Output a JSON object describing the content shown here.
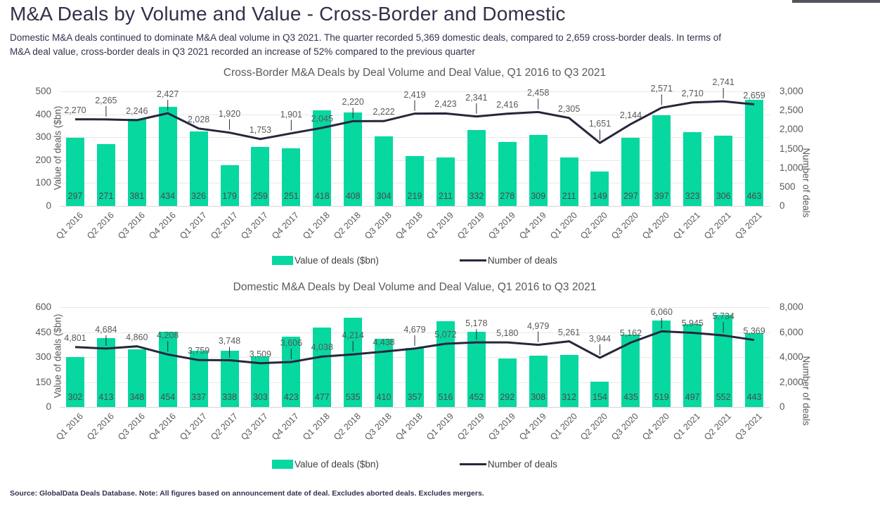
{
  "page": {
    "title": "M&A Deals by Volume and Value - Cross-Border and Domestic",
    "subtitle_lines": [
      "Domestic M&A deals continued to dominate M&A deal volume in Q3 2021. The quarter recorded 5,369 domestic deals, compared to 2,659 cross-border deals. In terms of",
      "M&A deal value, cross-border deals in Q3 2021 recorded an increase of 52% compared to the previous quarter"
    ],
    "source_note": "Source: GlobalData Deals Database. Note: All figures based on announcement date of deal. Excludes aborted deals. Excludes mergers."
  },
  "colors": {
    "bar": "#06D8A0",
    "line": "#27263C",
    "title_text": "#31314A",
    "axis_text": "#595959",
    "grid": "#E8E8E8"
  },
  "legend": {
    "bar_label": "Value of deals ($bn)",
    "line_label": "Number of deals"
  },
  "chart_data": [
    {
      "type": "bar",
      "subtype": "bar+line combo",
      "title": "Cross-Border M&A Deals by Deal Volume and Deal Value, Q1 2016 to Q3 2021",
      "categories": [
        "Q1 2016",
        "Q2 2016",
        "Q3 2016",
        "Q4 2016",
        "Q1 2017",
        "Q2 2017",
        "Q3 2017",
        "Q4 2017",
        "Q1 2018",
        "Q2 2018",
        "Q3 2018",
        "Q4 2018",
        "Q1 2019",
        "Q2 2019",
        "Q3 2019",
        "Q4 2019",
        "Q1 2020",
        "Q2 2020",
        "Q3 2020",
        "Q4 2020",
        "Q1 2021",
        "Q2 2021",
        "Q3 2021"
      ],
      "series": [
        {
          "name": "Value of deals ($bn)",
          "kind": "bar",
          "axis": "left",
          "values": [
            297,
            271,
            381,
            434,
            326,
            179,
            259,
            251,
            418,
            408,
            304,
            219,
            211,
            332,
            278,
            309,
            211,
            149,
            297,
            397,
            323,
            306,
            463
          ]
        },
        {
          "name": "Number of deals",
          "kind": "line",
          "axis": "right",
          "values": [
            2270,
            2265,
            2246,
            2427,
            2028,
            1920,
            1753,
            1901,
            2045,
            2220,
            2222,
            2419,
            2423,
            2341,
            2416,
            2458,
            2305,
            1651,
            2144,
            2571,
            2710,
            2741,
            2659
          ]
        }
      ],
      "left_axis": {
        "label": "Value of deals ($bn)",
        "min": 0,
        "max": 500,
        "step": 100
      },
      "right_axis": {
        "label": "Number of deals",
        "min": 0,
        "max": 3000,
        "step": 500
      },
      "grid": "horizontal",
      "legend_position": "bottom"
    },
    {
      "type": "bar",
      "subtype": "bar+line combo",
      "title": "Domestic M&A Deals by Deal Volume and Deal Value, Q1 2016 to Q3 2021",
      "categories": [
        "Q1 2016",
        "Q2 2016",
        "Q3 2016",
        "Q4 2016",
        "Q1 2017",
        "Q2 2017",
        "Q3 2017",
        "Q4 2017",
        "Q1 2018",
        "Q2 2018",
        "Q3 2018",
        "Q4 2018",
        "Q1 2019",
        "Q2 2019",
        "Q3 2019",
        "Q4 2019",
        "Q1 2020",
        "Q2 2020",
        "Q3 2020",
        "Q4 2020",
        "Q1 2021",
        "Q2 2021",
        "Q3 2021"
      ],
      "series": [
        {
          "name": "Value of deals ($bn)",
          "kind": "bar",
          "axis": "left",
          "values": [
            302,
            413,
            348,
            454,
            337,
            338,
            303,
            423,
            477,
            535,
            410,
            357,
            516,
            452,
            292,
            308,
            312,
            154,
            435,
            519,
            497,
            552,
            443
          ]
        },
        {
          "name": "Number of deals",
          "kind": "line",
          "axis": "right",
          "values": [
            4801,
            4684,
            4860,
            4208,
            3759,
            3748,
            3509,
            3606,
            4038,
            4214,
            4438,
            4679,
            5072,
            5178,
            5180,
            4979,
            5261,
            3944,
            5162,
            6060,
            5945,
            5734,
            5369
          ]
        }
      ],
      "left_axis": {
        "label": "Value of deals ($bn)",
        "min": 0,
        "max": 600,
        "step": 150
      },
      "right_axis": {
        "label": "Number of deals",
        "min": 0,
        "max": 8000,
        "step": 2000
      },
      "grid": "horizontal",
      "legend_position": "bottom"
    }
  ]
}
